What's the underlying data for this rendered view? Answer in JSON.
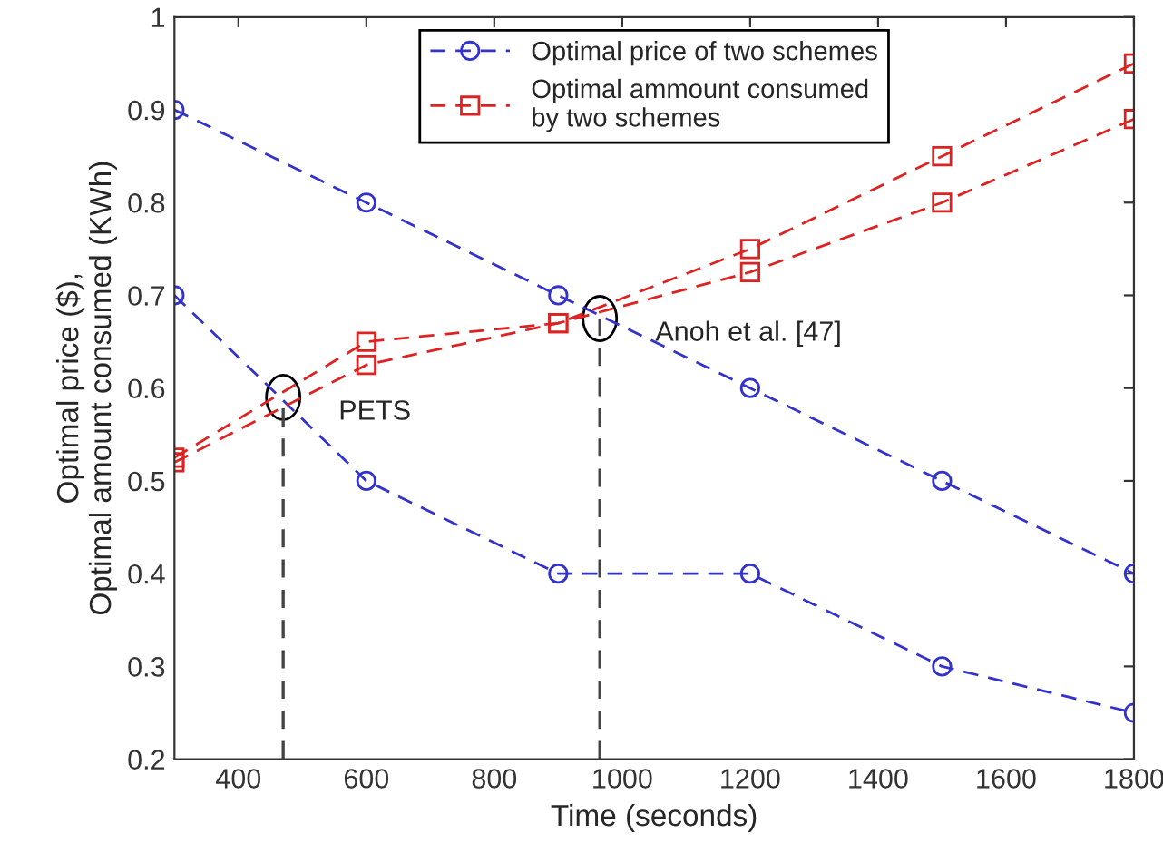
{
  "chart_data": {
    "type": "line",
    "xlabel": "Time (seconds)",
    "ylabel": "Optimal price ($),\nOptimal amount consumed (KWh)",
    "x": [
      300,
      600,
      900,
      1200,
      1500,
      1800
    ],
    "series": [
      {
        "name": "Optimal price of two schemes",
        "color": "#3333cc",
        "values": [
          0.9,
          0.8,
          0.7,
          0.6,
          0.5,
          0.4
        ],
        "marker": "circle"
      },
      {
        "color": "#3333cc",
        "values": [
          0.7,
          0.5,
          0.4,
          0.4,
          0.3,
          0.25
        ],
        "marker": "circle"
      },
      {
        "name": "Optimal ammount consumed\nby two schemes",
        "color": "#dd2222",
        "values": [
          0.525,
          0.65,
          0.67,
          0.75,
          0.85,
          0.95
        ],
        "marker": "square"
      },
      {
        "color": "#dd2222",
        "values": [
          0.52,
          0.625,
          0.67,
          0.725,
          0.8,
          0.89
        ],
        "marker": "square"
      }
    ],
    "line_style": "dashed",
    "xlim": [
      300,
      1800
    ],
    "xticks": [
      400,
      600,
      800,
      1000,
      1200,
      1400,
      1600,
      1800
    ],
    "ylim": [
      0.2,
      1
    ],
    "yticks": [
      0.2,
      0.3,
      0.4,
      0.5,
      0.6,
      0.7,
      0.8,
      0.9,
      1
    ],
    "grid": false,
    "legend": "top",
    "annotations": [
      {
        "text": "PETS",
        "x": 470,
        "y": 0.59
      },
      {
        "text": "Anoh et al. [47]",
        "x": 965,
        "y": 0.675
      }
    ],
    "ref_lines": [
      {
        "axis": "x",
        "value": 470,
        "color": "#444444",
        "line_style": "dashed"
      },
      {
        "axis": "x",
        "value": 965,
        "color": "#444444",
        "line_style": "dashed"
      }
    ]
  }
}
